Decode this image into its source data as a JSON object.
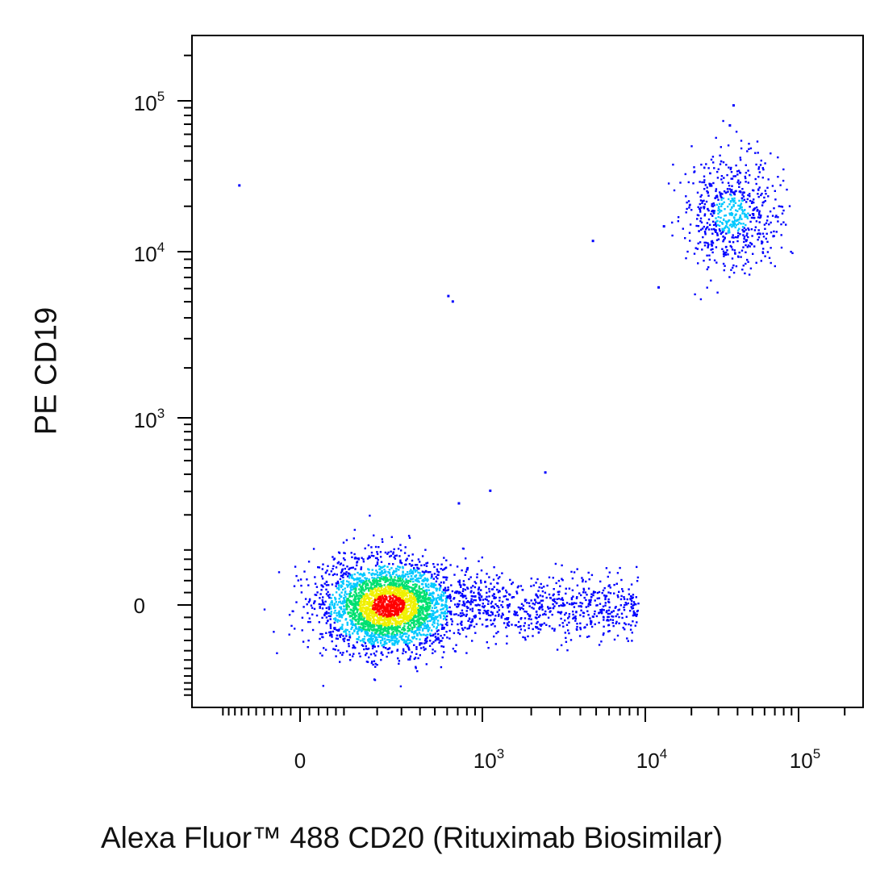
{
  "chart_data": {
    "type": "scatter",
    "subtype": "flow-cytometry-density-dot-plot",
    "xlabel": "Alexa Fluor™ 488 CD20 (Rituximab Biosimilar)",
    "ylabel": "PE CD19",
    "x_scale": "biexponential",
    "y_scale": "biexponential",
    "x_ticks": [
      {
        "value": 0,
        "base": "0",
        "exp": ""
      },
      {
        "value": 1000,
        "base": "10",
        "exp": "3"
      },
      {
        "value": 10000,
        "base": "10",
        "exp": "4"
      },
      {
        "value": 100000,
        "base": "10",
        "exp": "5"
      }
    ],
    "y_ticks": [
      {
        "value": 0,
        "base": "0",
        "exp": ""
      },
      {
        "value": 1000,
        "base": "10",
        "exp": "3"
      },
      {
        "value": 10000,
        "base": "10",
        "exp": "4"
      },
      {
        "value": 100000,
        "base": "10",
        "exp": "5"
      }
    ],
    "xlim": [
      -300,
      250000
    ],
    "ylim": [
      -250,
      250000
    ],
    "grid": false,
    "color_scale": [
      "#0000ff",
      "#00c8ff",
      "#00e070",
      "#f0f000",
      "#ff0000"
    ],
    "populations": [
      {
        "x_center": 240,
        "y_center": 0,
        "x_range": [
          15,
          680
        ],
        "y_range": [
          -90,
          90
        ],
        "events": 3200
      },
      {
        "x_center": 2500,
        "y_center": 0,
        "x_range": [
          650,
          9000
        ],
        "y_range": [
          -50,
          70
        ],
        "events": 700
      },
      {
        "x_center": 36000,
        "y_center": 18000,
        "x_range": [
          18000,
          95000
        ],
        "y_range": [
          5000,
          32000
        ],
        "events": 650
      }
    ],
    "outliers": [
      {
        "x": -150,
        "y": 28000
      },
      {
        "x": 4700,
        "y": 12000
      },
      {
        "x": 600,
        "y": 5500
      },
      {
        "x": 640,
        "y": 5100
      },
      {
        "x": 2400,
        "y": 420
      },
      {
        "x": 37000,
        "y": 95000
      },
      {
        "x": 35000,
        "y": 70000
      },
      {
        "x": 12000,
        "y": 6200
      },
      {
        "x": 13000,
        "y": 15000
      },
      {
        "x": 1100,
        "y": 310
      },
      {
        "x": 700,
        "y": 250
      }
    ]
  }
}
